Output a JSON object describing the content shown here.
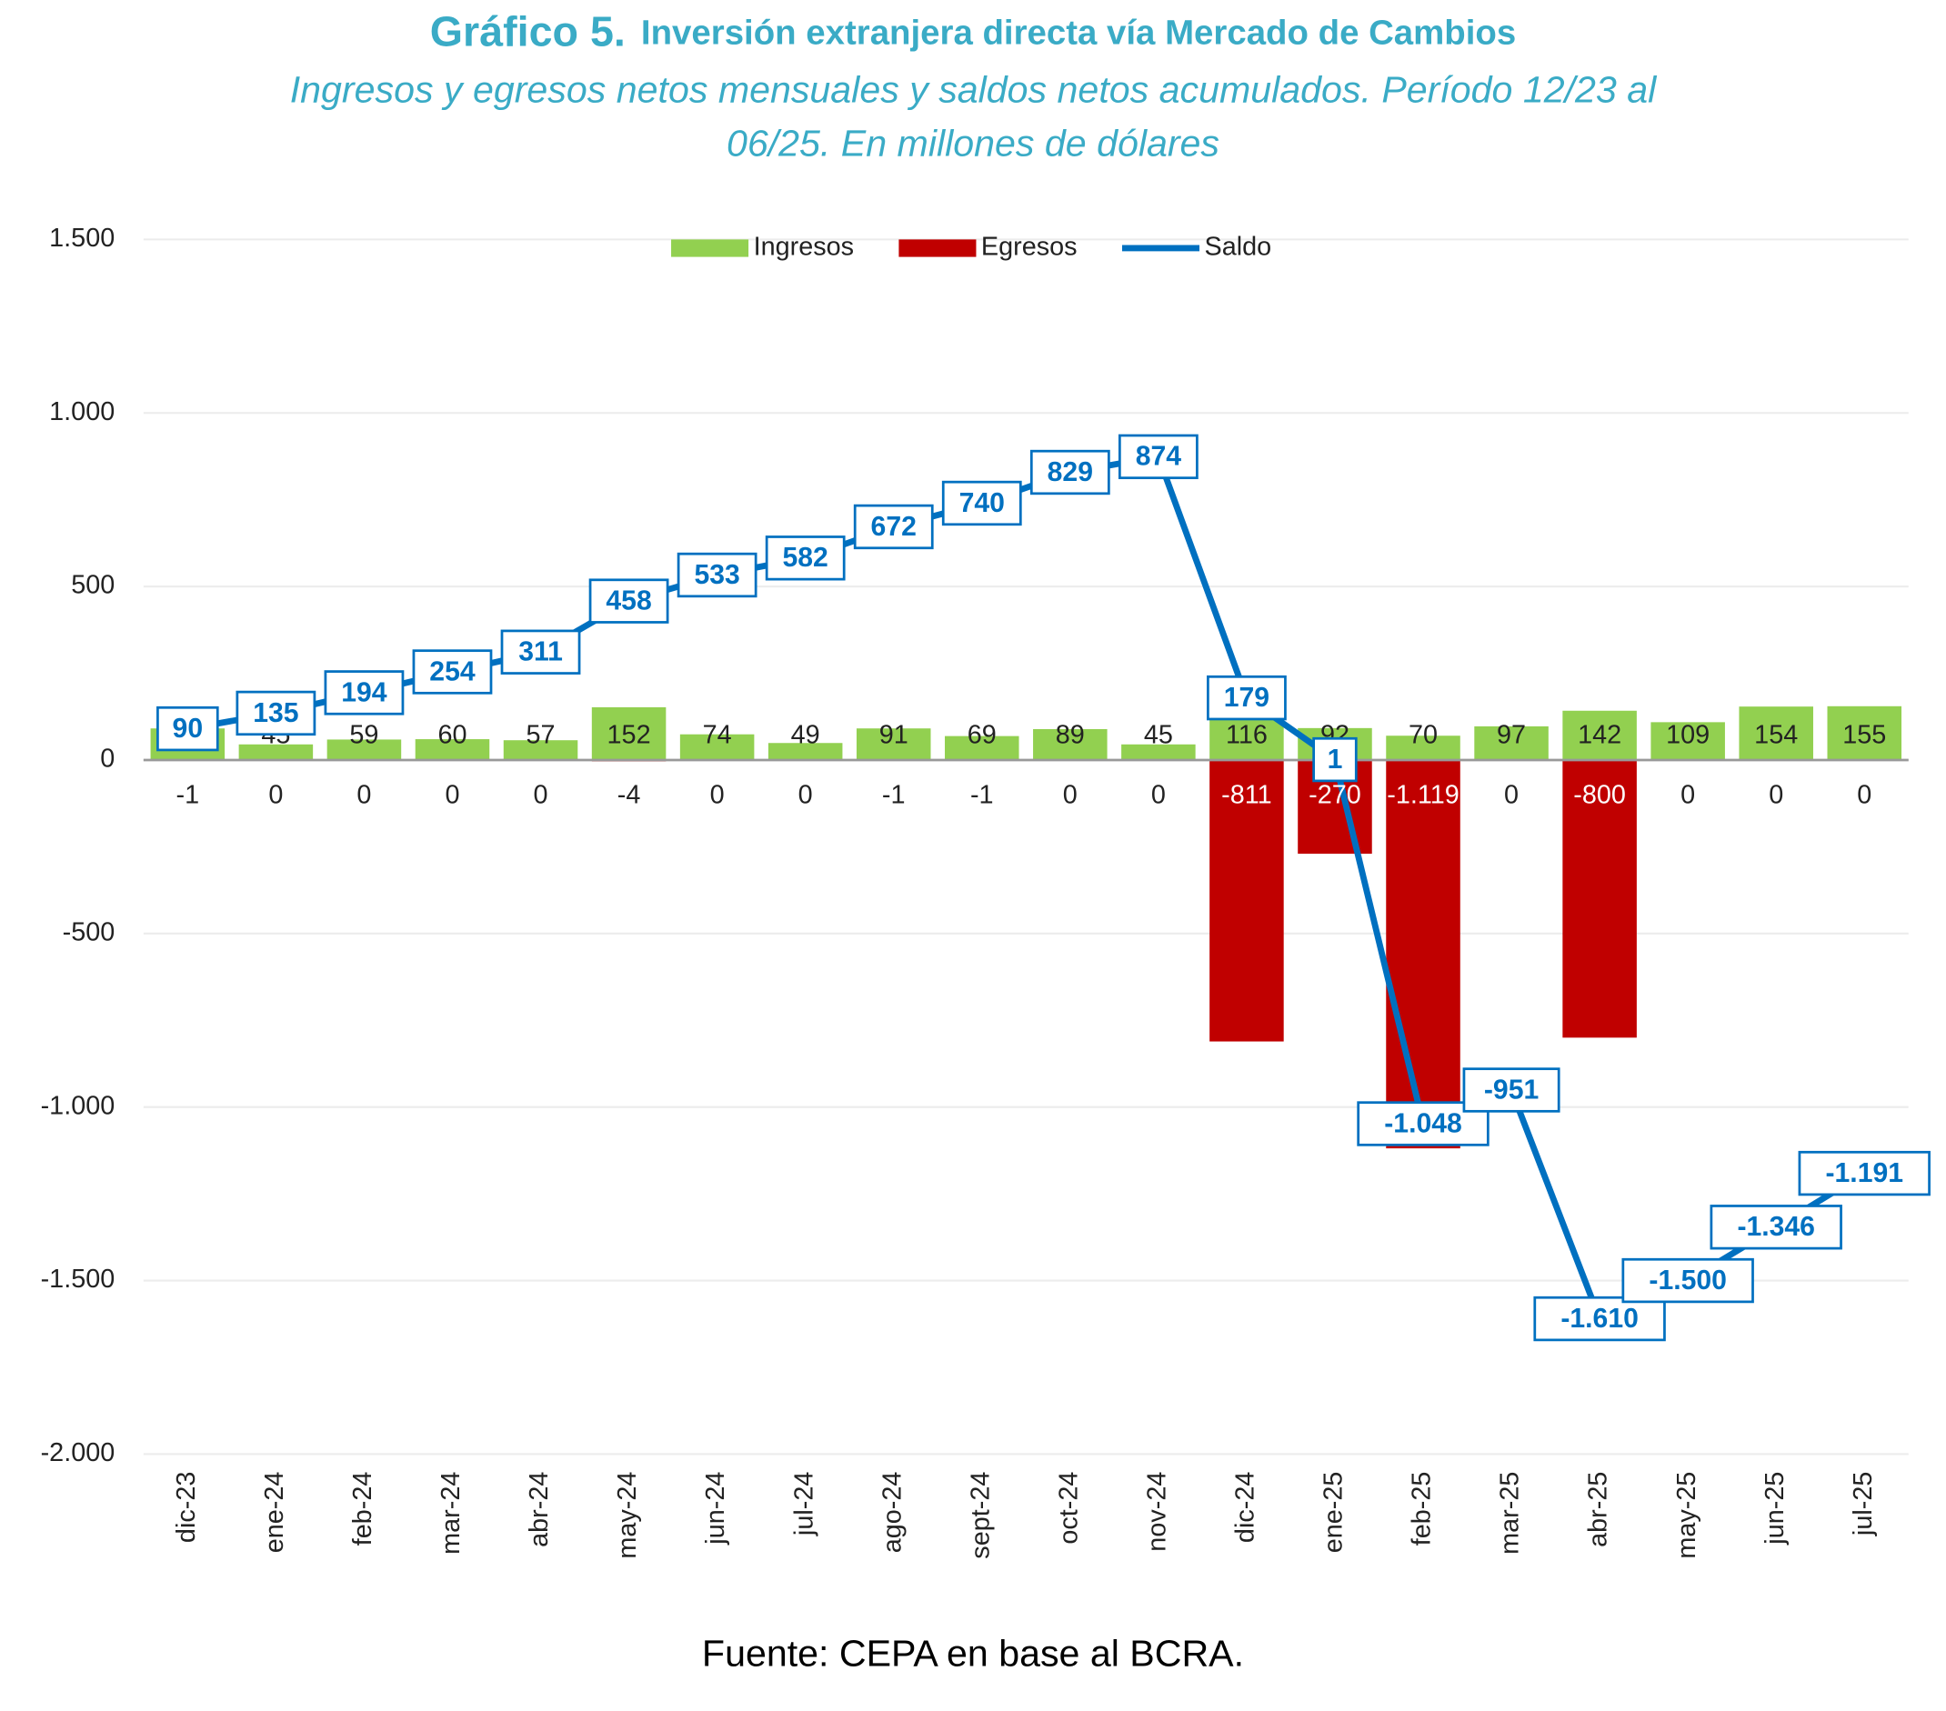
{
  "chart_data": {
    "type": "bar-line",
    "title_label": "Gráfico 5.",
    "title": "Inversión extranjera directa vía Mercado de Cambios",
    "subtitle": [
      "Ingresos y egresos netos mensuales y saldos netos acumulados. Período 12/23 al",
      "06/25. En millones de dólares"
    ],
    "source": "Fuente: CEPA en base al BCRA.",
    "categories": [
      "dic-23",
      "ene-24",
      "feb-24",
      "mar-24",
      "abr-24",
      "may-24",
      "jun-24",
      "jul-24",
      "ago-24",
      "sept-24",
      "oct-24",
      "nov-24",
      "dic-24",
      "ene-25",
      "feb-25",
      "mar-25",
      "abr-25",
      "may-25",
      "jun-25",
      "jul-25"
    ],
    "series": [
      {
        "name": "Ingresos",
        "type": "bar",
        "color": "#92d050",
        "values": [
          91,
          45,
          59,
          60,
          57,
          152,
          74,
          49,
          91,
          69,
          89,
          45,
          116,
          92,
          70,
          97,
          142,
          109,
          154,
          155
        ]
      },
      {
        "name": "Egresos",
        "type": "bar",
        "color": "#c00000",
        "values": [
          -1,
          0,
          0,
          0,
          0,
          -4,
          0,
          0,
          -1,
          -1,
          0,
          0,
          -811,
          -270,
          -1119,
          0,
          -800,
          0,
          0,
          0
        ],
        "value_labels": [
          "-1",
          "0",
          "0",
          "0",
          "0",
          "-4",
          "0",
          "0",
          "-1",
          "-1",
          "0",
          "0",
          "-811",
          "-270",
          "-1.119",
          "0",
          "-800",
          "0",
          "0",
          "0"
        ]
      },
      {
        "name": "Saldo",
        "type": "line",
        "color": "#0070c0",
        "values": [
          90,
          135,
          194,
          254,
          311,
          458,
          533,
          582,
          672,
          740,
          829,
          874,
          179,
          1,
          -1048,
          -951,
          -1610,
          -1500,
          -1346,
          -1191
        ],
        "value_labels": [
          "90",
          "135",
          "194",
          "254",
          "311",
          "458",
          "533",
          "582",
          "672",
          "740",
          "829",
          "874",
          "179",
          "1",
          "-1.048",
          "-951",
          "-1.610",
          "-1.500",
          "-1.346",
          "-1.191"
        ]
      }
    ],
    "ylim": [
      -2000,
      1500
    ],
    "yticks": [
      {
        "value": -2000,
        "label": "-2.000"
      },
      {
        "value": -1500,
        "label": "-1.500"
      },
      {
        "value": -1000,
        "label": "-1.000"
      },
      -500,
      0,
      500,
      {
        "value": 1000,
        "label": "1.000"
      },
      {
        "value": 1500,
        "label": "1.500"
      }
    ],
    "grid": true,
    "legend": "top"
  }
}
